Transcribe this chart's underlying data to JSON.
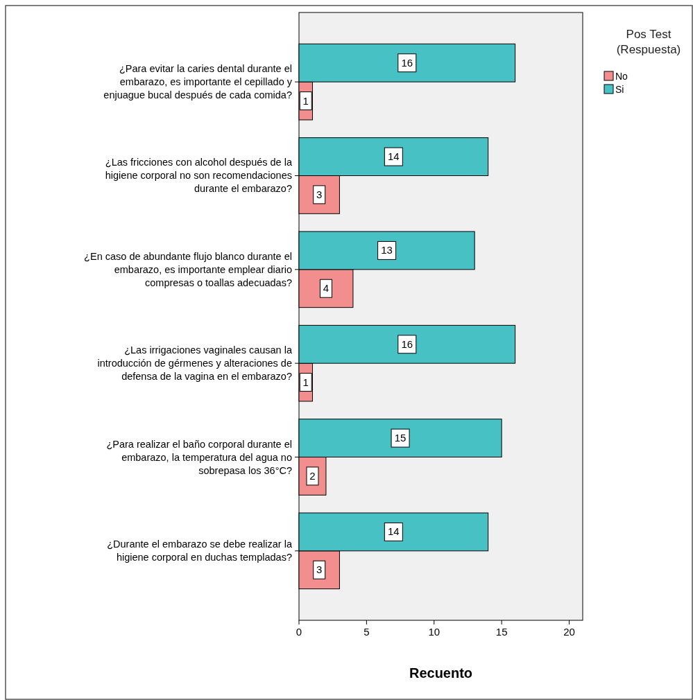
{
  "chart_data": {
    "type": "bar",
    "orientation": "horizontal",
    "xlabel": "Recuento",
    "legend_title": "Pos Test\n(Respuesta)",
    "legend": "top right",
    "grid": false,
    "data_labels": true,
    "categories": [
      "¿Para evitar  la caries dental durante el\nembarazo, es importante el cepillado y\nenjuague  bucal después de cada comida?",
      "¿Las fricciones con alcohol después de la\nhigiene corporal no son recomendaciones\ndurante el embarazo?",
      "¿En caso de abundante flujo blanco durante el\nembarazo, es importante emplear diario\ncompresas o toallas adecuadas?",
      "¿Las irrigaciones vaginales causan la\nintroducción de gérmenes y alteraciones de\ndefensa de la vagina en el embarazo?",
      "¿Para realizar el baño corporal durante el\nembarazo, la temperatura del agua no\nsobrepasa los 36°C?",
      "¿Durante el embarazo se debe realizar la\nhigiene corporal en duchas templadas?"
    ],
    "series": [
      {
        "name": "No",
        "color": "#f28e8e",
        "values": [
          1,
          3,
          4,
          1,
          2,
          3
        ]
      },
      {
        "name": "Si",
        "color": "#48c1c4",
        "values": [
          16,
          14,
          13,
          16,
          15,
          14
        ]
      }
    ],
    "xlim": [
      0,
      21
    ],
    "xticks": [
      0,
      5,
      10,
      15,
      20
    ]
  }
}
